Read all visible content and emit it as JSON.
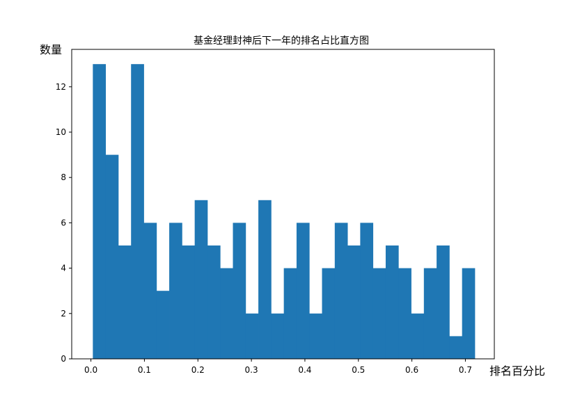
{
  "chart_data": {
    "type": "bar",
    "title": "基金经理封神后下一年的排名占比直方图",
    "xlabel": "排名百分比",
    "ylabel": "数量",
    "xlim": [
      -0.0359,
      0.7541
    ],
    "ylim": [
      0,
      13.65
    ],
    "x_ticks": [
      "0.0",
      "0.1",
      "0.2",
      "0.3",
      "0.4",
      "0.5",
      "0.6",
      "0.7"
    ],
    "x_tick_values": [
      0.0,
      0.1,
      0.2,
      0.3,
      0.4,
      0.5,
      0.6,
      0.7
    ],
    "y_ticks": [
      "0",
      "2",
      "4",
      "6",
      "8",
      "10",
      "12"
    ],
    "y_tick_values": [
      0,
      2,
      4,
      6,
      8,
      10,
      12
    ],
    "bin_start": 0.0036,
    "bin_width": 0.0238,
    "values": [
      13,
      9,
      5,
      13,
      6,
      3,
      6,
      5,
      7,
      5,
      4,
      6,
      2,
      7,
      2,
      4,
      6,
      2,
      4,
      6,
      5,
      6,
      4,
      5,
      4,
      2,
      4,
      5,
      1,
      4
    ],
    "bar_color": "#1f77b4",
    "grid": false
  }
}
